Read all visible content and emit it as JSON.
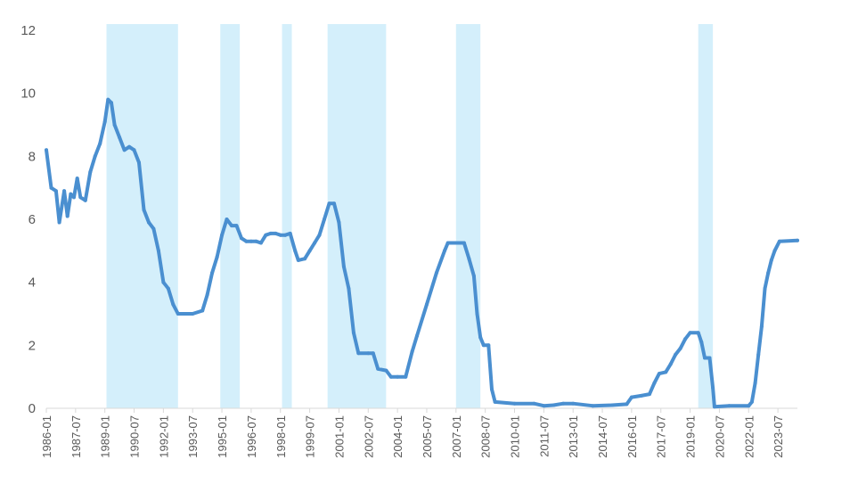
{
  "chart_data": {
    "type": "line",
    "title": "",
    "xlabel": "",
    "ylabel": "",
    "ylim": [
      0,
      12
    ],
    "y_ticks": [
      "0",
      "2",
      "4",
      "6",
      "8",
      "10",
      "12"
    ],
    "x_tick_labels": [
      "1986-01",
      "1987-07",
      "1989-01",
      "1990-07",
      "1992-01",
      "1993-07",
      "1995-01",
      "1996-07",
      "1998-01",
      "1999-07",
      "2001-01",
      "2002-07",
      "2004-01",
      "2005-07",
      "2007-01",
      "2008-07",
      "2010-01",
      "2011-07",
      "2013-01",
      "2014-07",
      "2016-01",
      "2017-07",
      "2019-01",
      "2020-07",
      "2022-01",
      "2023-07"
    ],
    "x_range": [
      "1986-01",
      "2024-07"
    ],
    "grid": false,
    "legend": "none",
    "colors": {
      "line": "#4a8fd0",
      "shade": "#d4effb",
      "axis": "#d9d9d9",
      "text": "#595959"
    },
    "shaded_periods": [
      [
        "1989-02",
        "1992-10"
      ],
      [
        "1994-12",
        "1995-12"
      ],
      [
        "1998-02",
        "1998-08"
      ],
      [
        "2000-06",
        "2003-06"
      ],
      [
        "2007-01",
        "2008-04"
      ],
      [
        "2019-06",
        "2020-03"
      ]
    ],
    "series": [
      {
        "points": [
          [
            "1986-01",
            8.2
          ],
          [
            "1986-04",
            7.0
          ],
          [
            "1986-07",
            6.9
          ],
          [
            "1986-09",
            5.9
          ],
          [
            "1986-12",
            6.9
          ],
          [
            "1987-02",
            6.1
          ],
          [
            "1987-04",
            6.8
          ],
          [
            "1987-06",
            6.7
          ],
          [
            "1987-08",
            7.3
          ],
          [
            "1987-10",
            6.7
          ],
          [
            "1988-01",
            6.6
          ],
          [
            "1988-04",
            7.5
          ],
          [
            "1988-07",
            8.0
          ],
          [
            "1988-10",
            8.4
          ],
          [
            "1989-01",
            9.1
          ],
          [
            "1989-03",
            9.8
          ],
          [
            "1989-05",
            9.7
          ],
          [
            "1989-07",
            9.0
          ],
          [
            "1989-10",
            8.6
          ],
          [
            "1990-01",
            8.2
          ],
          [
            "1990-04",
            8.3
          ],
          [
            "1990-07",
            8.2
          ],
          [
            "1990-10",
            7.8
          ],
          [
            "1991-01",
            6.3
          ],
          [
            "1991-04",
            5.9
          ],
          [
            "1991-07",
            5.7
          ],
          [
            "1991-10",
            5.0
          ],
          [
            "1992-01",
            4.0
          ],
          [
            "1992-04",
            3.8
          ],
          [
            "1992-07",
            3.3
          ],
          [
            "1992-10",
            3.0
          ],
          [
            "1993-01",
            3.0
          ],
          [
            "1993-07",
            3.0
          ],
          [
            "1994-01",
            3.1
          ],
          [
            "1994-04",
            3.6
          ],
          [
            "1994-07",
            4.3
          ],
          [
            "1994-10",
            4.8
          ],
          [
            "1995-01",
            5.5
          ],
          [
            "1995-04",
            6.0
          ],
          [
            "1995-07",
            5.8
          ],
          [
            "1995-10",
            5.8
          ],
          [
            "1996-01",
            5.4
          ],
          [
            "1996-04",
            5.3
          ],
          [
            "1996-07",
            5.3
          ],
          [
            "1996-10",
            5.3
          ],
          [
            "1997-01",
            5.25
          ],
          [
            "1997-04",
            5.5
          ],
          [
            "1997-07",
            5.55
          ],
          [
            "1997-10",
            5.55
          ],
          [
            "1998-01",
            5.5
          ],
          [
            "1998-04",
            5.5
          ],
          [
            "1998-07",
            5.55
          ],
          [
            "1998-10",
            5.0
          ],
          [
            "1998-12",
            4.7
          ],
          [
            "1999-04",
            4.75
          ],
          [
            "1999-07",
            5.0
          ],
          [
            "1999-10",
            5.25
          ],
          [
            "2000-01",
            5.5
          ],
          [
            "2000-04",
            6.0
          ],
          [
            "2000-07",
            6.5
          ],
          [
            "2000-10",
            6.5
          ],
          [
            "2001-01",
            5.9
          ],
          [
            "2001-04",
            4.5
          ],
          [
            "2001-07",
            3.8
          ],
          [
            "2001-10",
            2.4
          ],
          [
            "2002-01",
            1.75
          ],
          [
            "2002-07",
            1.75
          ],
          [
            "2002-10",
            1.75
          ],
          [
            "2003-01",
            1.25
          ],
          [
            "2003-06",
            1.2
          ],
          [
            "2003-09",
            1.0
          ],
          [
            "2004-01",
            1.0
          ],
          [
            "2004-06",
            1.0
          ],
          [
            "2004-10",
            1.8
          ],
          [
            "2005-01",
            2.3
          ],
          [
            "2005-07",
            3.3
          ],
          [
            "2006-01",
            4.3
          ],
          [
            "2006-06",
            5.0
          ],
          [
            "2006-08",
            5.25
          ],
          [
            "2007-06",
            5.25
          ],
          [
            "2007-09",
            4.75
          ],
          [
            "2007-12",
            4.2
          ],
          [
            "2008-02",
            3.0
          ],
          [
            "2008-04",
            2.25
          ],
          [
            "2008-06",
            2.0
          ],
          [
            "2008-09",
            2.0
          ],
          [
            "2008-11",
            0.6
          ],
          [
            "2009-01",
            0.2
          ],
          [
            "2010-01",
            0.15
          ],
          [
            "2011-01",
            0.15
          ],
          [
            "2011-07",
            0.08
          ],
          [
            "2012-01",
            0.1
          ],
          [
            "2012-07",
            0.15
          ],
          [
            "2013-01",
            0.15
          ],
          [
            "2014-01",
            0.08
          ],
          [
            "2015-01",
            0.1
          ],
          [
            "2015-10",
            0.13
          ],
          [
            "2016-01",
            0.35
          ],
          [
            "2016-07",
            0.4
          ],
          [
            "2016-12",
            0.45
          ],
          [
            "2017-03",
            0.8
          ],
          [
            "2017-06",
            1.1
          ],
          [
            "2017-10",
            1.15
          ],
          [
            "2018-01",
            1.4
          ],
          [
            "2018-04",
            1.7
          ],
          [
            "2018-07",
            1.9
          ],
          [
            "2018-10",
            2.2
          ],
          [
            "2019-01",
            2.4
          ],
          [
            "2019-06",
            2.4
          ],
          [
            "2019-08",
            2.1
          ],
          [
            "2019-10",
            1.6
          ],
          [
            "2020-01",
            1.6
          ],
          [
            "2020-03",
            0.65
          ],
          [
            "2020-04",
            0.05
          ],
          [
            "2021-01",
            0.08
          ],
          [
            "2022-01",
            0.08
          ],
          [
            "2022-03",
            0.2
          ],
          [
            "2022-05",
            0.8
          ],
          [
            "2022-07",
            1.7
          ],
          [
            "2022-09",
            2.6
          ],
          [
            "2022-11",
            3.8
          ],
          [
            "2023-01",
            4.3
          ],
          [
            "2023-03",
            4.7
          ],
          [
            "2023-05",
            5.0
          ],
          [
            "2023-08",
            5.3
          ],
          [
            "2024-07",
            5.33
          ]
        ]
      }
    ]
  }
}
